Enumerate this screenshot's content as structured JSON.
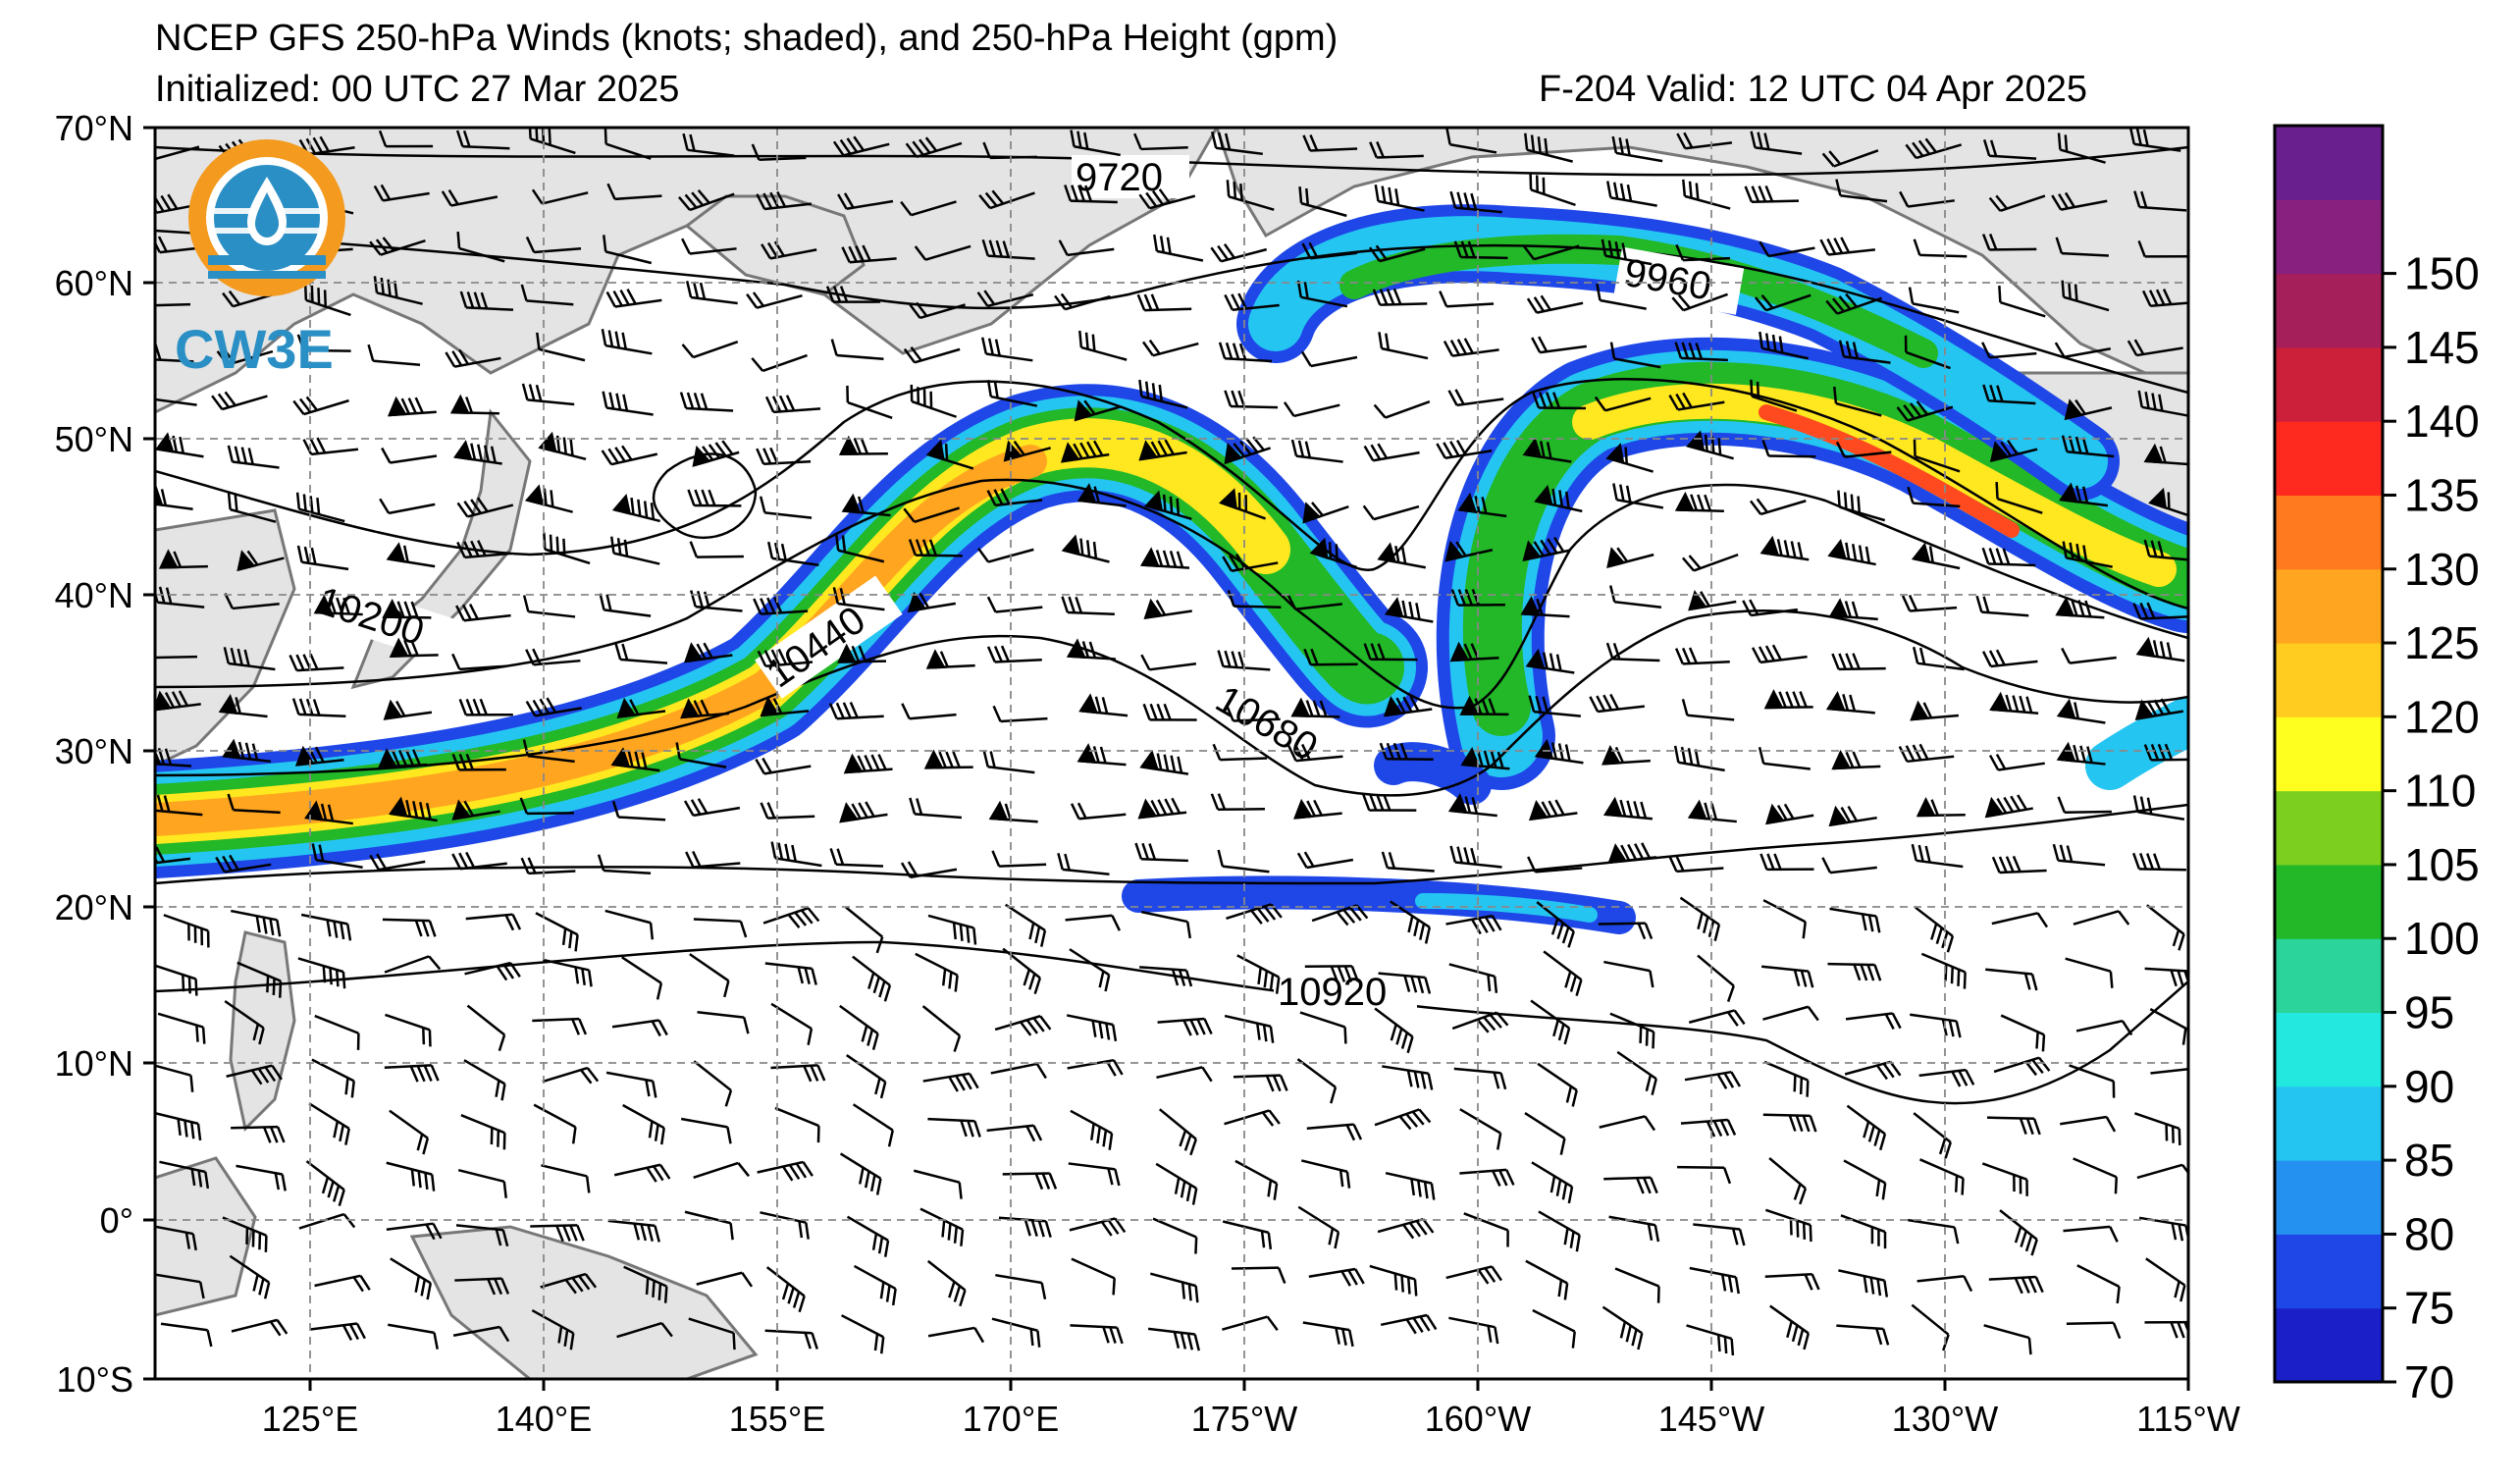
{
  "header": {
    "title": "NCEP GFS 250-hPa Winds (knots; shaded), and 250-hPa Height (gpm)",
    "initialized": "Initialized: 00 UTC 27 Mar 2025",
    "valid": "F-204  Valid: 12 UTC 04 Apr 2025"
  },
  "logo": {
    "text": "CW3E"
  },
  "axes": {
    "lat_labels": [
      "70°N",
      "60°N",
      "50°N",
      "40°N",
      "30°N",
      "20°N",
      "10°N",
      "0°",
      "10°S"
    ],
    "lon_labels": [
      "125°E",
      "140°E",
      "155°E",
      "170°E",
      "175°W",
      "160°W",
      "145°W",
      "130°W",
      "115°W"
    ]
  },
  "contour_labels": [
    "9720",
    "9960",
    "10200",
    "10440",
    "10680",
    "10920"
  ],
  "colorbar": {
    "ticks": [
      "70",
      "75",
      "80",
      "85",
      "90",
      "95",
      "100",
      "105",
      "110",
      "120",
      "125",
      "130",
      "135",
      "140",
      "145",
      "150"
    ],
    "colors": [
      "#1a1fc8",
      "#1f47e8",
      "#2491f0",
      "#25c5f2",
      "#22e8e0",
      "#2bd49a",
      "#22b828",
      "#7ccf1e",
      "#ffff1f",
      "#ffcc1f",
      "#ffa51f",
      "#ff7a1f",
      "#ff2a1f",
      "#cc1f3a",
      "#a51f5a",
      "#882080",
      "#6a1f8f"
    ]
  },
  "jet_colors": {
    "outer": "#1f47e8",
    "cyan": "#25c5f2",
    "green": "#22b828",
    "yellow": "#ffe81f",
    "orange": "#ffa51f",
    "red": "#ff4a1f"
  }
}
